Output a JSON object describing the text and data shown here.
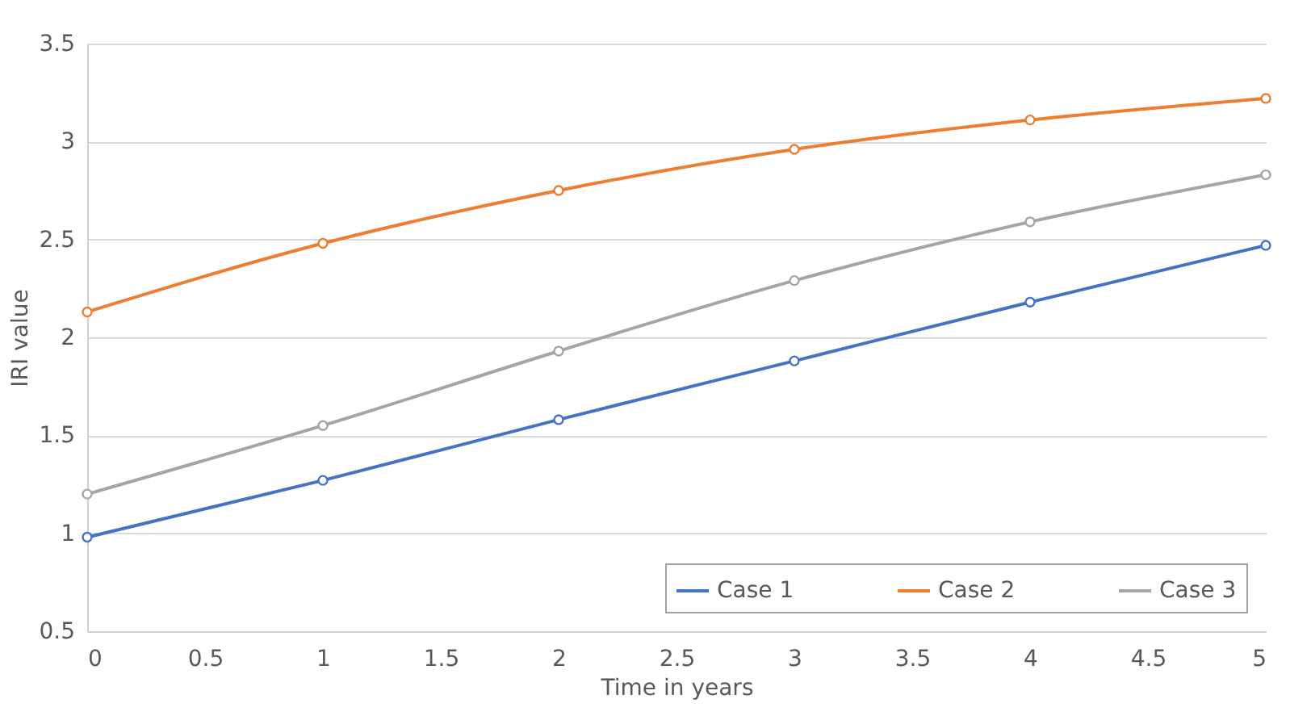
{
  "chart_data": {
    "type": "line",
    "xlabel": "Time in years",
    "ylabel": "IRI value",
    "x": [
      0,
      1,
      2,
      3,
      4,
      5
    ],
    "series": [
      {
        "name": "Case 1",
        "color": "#4472c4",
        "values": [
          0.98,
          1.27,
          1.58,
          1.88,
          2.18,
          2.47
        ]
      },
      {
        "name": "Case 2",
        "color": "#ed7d31",
        "values": [
          2.13,
          2.48,
          2.75,
          2.96,
          3.11,
          3.22
        ]
      },
      {
        "name": "Case 3",
        "color": "#a5a5a5",
        "values": [
          1.2,
          1.55,
          1.93,
          2.29,
          2.59,
          2.83
        ]
      }
    ],
    "xlim": [
      0,
      5
    ],
    "xticks": [
      0,
      0.5,
      1,
      1.5,
      2,
      2.5,
      3,
      3.5,
      4,
      4.5,
      5
    ],
    "ylim": [
      0.5,
      3.5
    ],
    "yticks": [
      0.5,
      1,
      1.5,
      2,
      2.5,
      3,
      3.5
    ],
    "grid": "y",
    "legend": "bottom right",
    "marker": "circle",
    "line_style": "solid"
  }
}
